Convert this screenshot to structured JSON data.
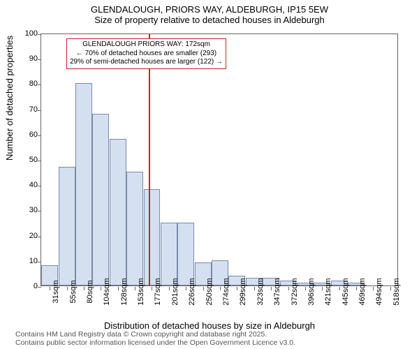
{
  "title_main": "GLENDALOUGH, PRIORS WAY, ALDEBURGH, IP15 5EW",
  "title_sub": "Size of property relative to detached houses in Aldeburgh",
  "ylabel": "Number of detached properties",
  "xlabel": "Distribution of detached houses by size in Aldeburgh",
  "footnote_line1": "Contains HM Land Registry data © Crown copyright and database right 2025.",
  "footnote_line2": "Contains public sector information licensed under the Open Government Licence v3.0.",
  "histogram": {
    "type": "histogram",
    "ylim": [
      0,
      100
    ],
    "ytick_step": 10,
    "bar_fill": "#d4dff0",
    "bar_stroke": "#7a8aa8",
    "background_color": "#ffffff",
    "marker_color": "#cc2222",
    "annotation_border": "#cc2222",
    "categories": [
      "31sqm",
      "55sqm",
      "80sqm",
      "104sqm",
      "128sqm",
      "153sqm",
      "177sqm",
      "201sqm",
      "226sqm",
      "250sqm",
      "274sqm",
      "299sqm",
      "323sqm",
      "347sqm",
      "372sqm",
      "396sqm",
      "421sqm",
      "445sqm",
      "469sqm",
      "494sqm",
      "518sqm"
    ],
    "values": [
      8,
      47,
      80,
      68,
      58,
      45,
      38,
      25,
      25,
      9,
      10,
      4,
      3,
      3,
      2,
      1,
      1,
      2,
      1,
      0,
      0
    ],
    "bar_width_ratio": 0.98,
    "marker_index": 5.8
  },
  "annotation": {
    "line1": "GLENDALOUGH PRIORS WAY: 172sqm",
    "line2": "← 70% of detached houses are smaller (293)",
    "line3": "29% of semi-detached houses are larger (122) →"
  }
}
